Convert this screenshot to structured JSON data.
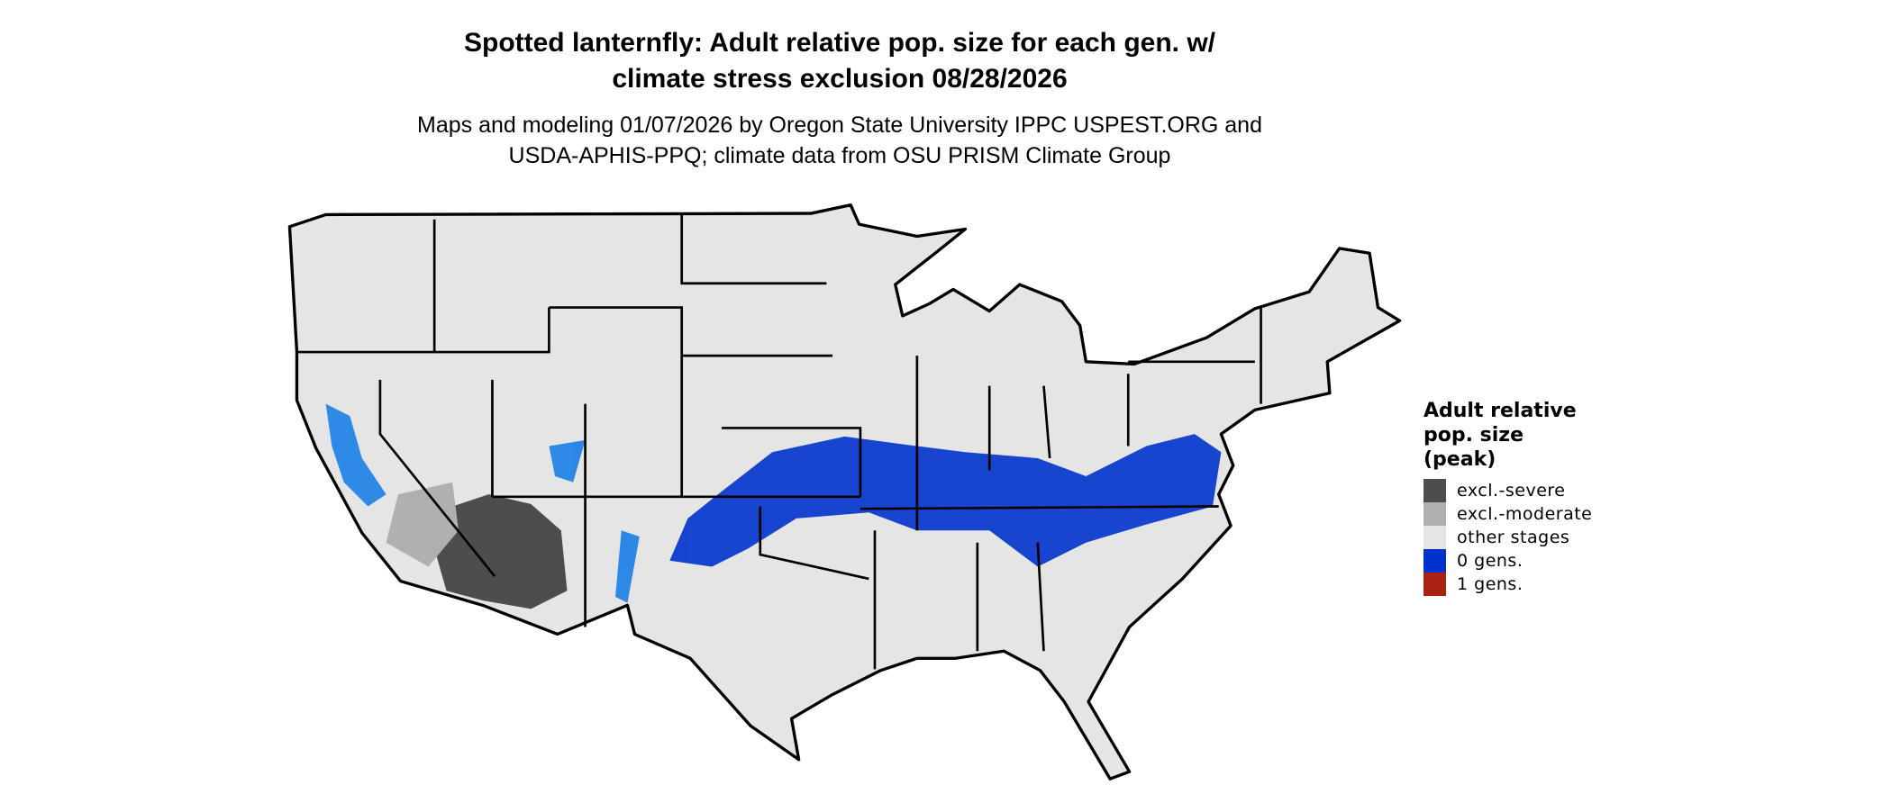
{
  "title_line1": "Spotted lanternfly: Adult relative pop. size for each gen. w/",
  "title_line2": "climate stress exclusion 08/28/2026",
  "subtitle_line1": "Maps and modeling 01/07/2026 by Oregon State University IPPC USPEST.ORG and",
  "subtitle_line2": "USDA-APHIS-PPQ; climate data from OSU PRISM Climate Group",
  "legend": {
    "title_line1": "Adult relative",
    "title_line2": "pop. size",
    "title_line3": "(peak)",
    "items": [
      {
        "label": "excl.-severe",
        "color": "#4d4d4d"
      },
      {
        "label": "excl.-moderate",
        "color": "#b0b0b0"
      },
      {
        "label": "other stages",
        "color": "#e5e5e5"
      },
      {
        "label": "0 gens.",
        "color": "#0033cc"
      },
      {
        "label": "1 gens.",
        "color": "#aa2211"
      }
    ]
  },
  "colors": {
    "land": "#e5e5e5",
    "border": "#000000",
    "severe": "#4d4d4d",
    "moderate": "#b0b0b0",
    "zero_gens": "#0033cc",
    "zero_gens_light": "#1a7fe6"
  }
}
